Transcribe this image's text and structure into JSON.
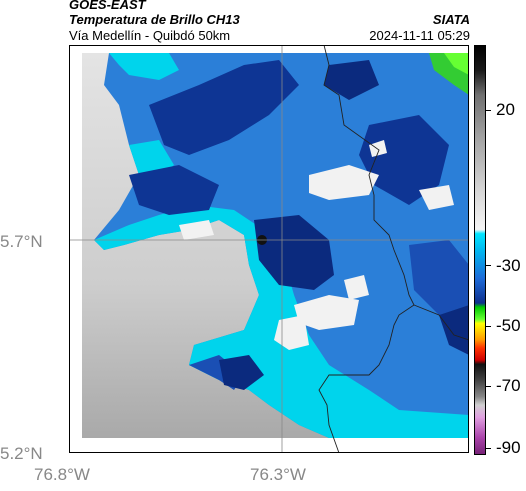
{
  "header": {
    "satellite": "GOES-EAST",
    "product": "Temperatura de Brillo CH13",
    "route": "Vía Medellín - Quibdó 50km",
    "org": "SIATA",
    "datetime": "2024-11-11 05:29"
  },
  "axes": {
    "lat_labels": [
      "5.7°N",
      "5.2°N"
    ],
    "lon_labels": [
      "76.8°W",
      "76.3°W"
    ]
  },
  "colorbar": {
    "labels": [
      "20",
      "-30",
      "-50",
      "-70",
      "-90"
    ]
  },
  "colors": {
    "dark_blue": "#0a2a8a",
    "blue": "#1f62c8",
    "light_blue": "#3a8fe0",
    "cyan": "#00d8ee",
    "green": "#22dd22",
    "gray": "#c8c8c8"
  }
}
